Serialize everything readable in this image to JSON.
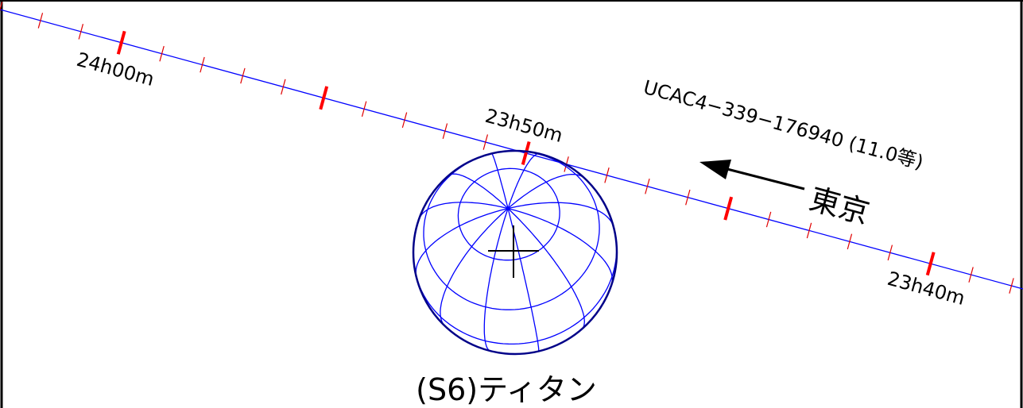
{
  "chart": {
    "colors": {
      "track": "#0000ff",
      "minor_tick": "#e00000",
      "major_tick": "#ff0000",
      "globe": "#000088",
      "grid": "#0000ff",
      "text": "#000000",
      "frame": "#000000"
    },
    "track": {
      "time_labels": [
        {
          "text": "24h00m"
        },
        {
          "text": "23h50m"
        },
        {
          "text": "23h40m"
        }
      ]
    },
    "star": {
      "label": "UCAC4−339−176940 (11.0等)"
    },
    "direction": {
      "label": "東京",
      "icon": "arrow-left-icon"
    },
    "body": {
      "label": "(S6)ティタン",
      "icon": "planet-globe-icon"
    },
    "center_marker": {
      "icon": "crosshair-icon"
    }
  }
}
